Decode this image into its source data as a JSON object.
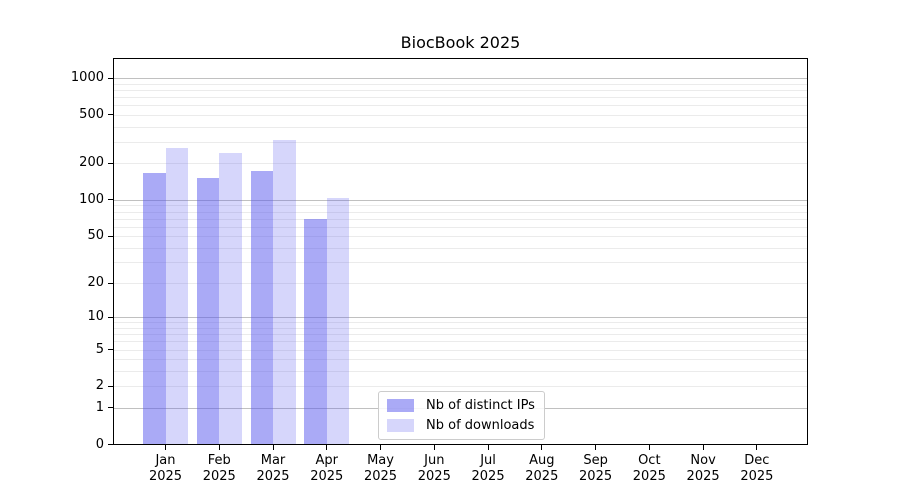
{
  "chart_data": {
    "type": "bar",
    "title": "BiocBook 2025",
    "x_tick_months": [
      "Jan",
      "Feb",
      "Mar",
      "Apr",
      "May",
      "Jun",
      "Jul",
      "Aug",
      "Sep",
      "Oct",
      "Nov",
      "Dec"
    ],
    "x_tick_year": "2025",
    "series": [
      {
        "name": "Nb of distinct IPs",
        "color": "rgba(85,85,238,0.50)",
        "values": [
          168,
          153,
          174,
          70,
          null,
          null,
          null,
          null,
          null,
          null,
          null,
          null
        ]
      },
      {
        "name": "Nb of downloads",
        "color": "rgba(85,85,238,0.24)",
        "values": [
          270,
          243,
          310,
          103,
          null,
          null,
          null,
          null,
          null,
          null,
          null,
          null
        ]
      }
    ],
    "yscale": "log1p",
    "yticks": [
      0,
      1,
      2,
      5,
      10,
      20,
      50,
      100,
      200,
      500,
      1000
    ],
    "ylim": [
      0,
      1470
    ],
    "grid": {
      "major_lines": [
        1,
        10,
        100,
        1000
      ],
      "minor_subs": [
        2,
        3,
        4,
        5,
        6,
        7,
        8,
        9
      ],
      "major_color": "#c0c0c0",
      "minor_color": "#ebebeb"
    },
    "legend": {
      "location": "inside lower-left-of-center",
      "entries": [
        "Nb of distinct IPs",
        "Nb of downloads"
      ]
    }
  }
}
